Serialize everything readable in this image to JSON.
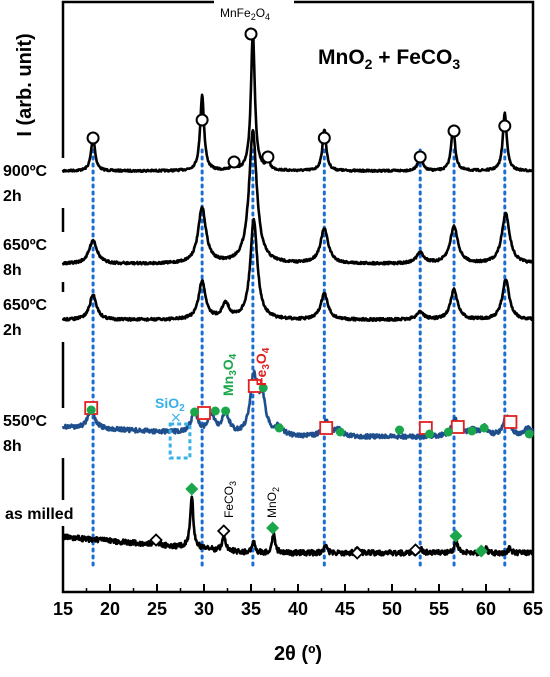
{
  "chart_data": {
    "type": "line",
    "title": "MnO2 + FeCO3",
    "title_parts": {
      "a": "MnO",
      "a_sub": "2",
      "b": " + FeCO",
      "b_sub": "3"
    },
    "xlabel": "2θ (º)",
    "ylabel": "I (arb. unit)",
    "xlim": [
      15,
      65
    ],
    "xticks": [
      15,
      20,
      25,
      30,
      35,
      40,
      45,
      50,
      55,
      60,
      65
    ],
    "grid": false,
    "colors": {
      "black": "#000000",
      "blue_trace": "#1f4e8c",
      "ref_line": "#1a6fd6",
      "green": "#1aa64a",
      "red": "#e02020",
      "sio2": "#38b0e8"
    },
    "series": [
      {
        "name": "900ºC 2h",
        "label_lines": [
          "900ºC",
          "2h"
        ],
        "color": "#000000",
        "peaks": [
          [
            18.2,
            0.25
          ],
          [
            29.8,
            0.55
          ],
          [
            33.1,
            0.04
          ],
          [
            35.2,
            1.0
          ],
          [
            36.8,
            0.06
          ],
          [
            42.8,
            0.3
          ],
          [
            53.0,
            0.12
          ],
          [
            56.5,
            0.32
          ],
          [
            62.0,
            0.42
          ]
        ]
      },
      {
        "name": "650ºC 8h",
        "label_lines": [
          "650ºC",
          "8h"
        ],
        "color": "#000000",
        "peaks": [
          [
            18.2,
            0.18
          ],
          [
            29.8,
            0.42
          ],
          [
            35.2,
            1.0
          ],
          [
            42.8,
            0.26
          ],
          [
            53.0,
            0.08
          ],
          [
            56.6,
            0.28
          ],
          [
            62.1,
            0.38
          ]
        ]
      },
      {
        "name": "650ºC 2h",
        "label_lines": [
          "650ºC",
          "2h"
        ],
        "color": "#000000",
        "peaks": [
          [
            18.2,
            0.25
          ],
          [
            29.8,
            0.38
          ],
          [
            32.3,
            0.15
          ],
          [
            35.3,
            1.0
          ],
          [
            42.8,
            0.26
          ],
          [
            53.0,
            0.08
          ],
          [
            56.6,
            0.3
          ],
          [
            62.1,
            0.4
          ]
        ]
      },
      {
        "name": "550ºC 8h",
        "label_lines": [
          "550ºC",
          "8h"
        ],
        "color": "#1f4e8c",
        "peaks": [
          [
            18.0,
            0.3
          ],
          [
            29.0,
            0.35
          ],
          [
            30.8,
            0.3
          ],
          [
            32.3,
            0.35
          ],
          [
            35.3,
            1.0
          ],
          [
            36.2,
            0.6
          ],
          [
            38.0,
            0.15
          ],
          [
            43.0,
            0.25
          ],
          [
            44.3,
            0.12
          ],
          [
            56.7,
            0.3
          ],
          [
            58.5,
            0.12
          ],
          [
            59.8,
            0.15
          ],
          [
            62.2,
            0.35
          ],
          [
            64.5,
            0.15
          ]
        ]
      },
      {
        "name": "as milled",
        "label_lines": [
          "as milled"
        ],
        "color": "#000000",
        "peaks": [
          [
            24.9,
            0.12
          ],
          [
            28.7,
            1.0
          ],
          [
            32.1,
            0.3
          ],
          [
            35.3,
            0.2
          ],
          [
            37.4,
            0.35
          ],
          [
            42.9,
            0.15
          ],
          [
            46.3,
            0.06
          ],
          [
            53.1,
            0.08
          ],
          [
            56.8,
            0.25
          ],
          [
            60.0,
            0.08
          ],
          [
            62.5,
            0.08
          ]
        ]
      }
    ],
    "reference_lines": {
      "compound": "MnFe2O4",
      "x": [
        18.2,
        29.8,
        35.2,
        42.8,
        53.0,
        56.6,
        62.0
      ]
    },
    "markers": {
      "MnFe2O4_circles": [
        18.2,
        29.8,
        33.2,
        35.0,
        36.8,
        42.8,
        53.0,
        56.6,
        62.0
      ],
      "Fe3O4_squares": [
        18.0,
        30.0,
        35.4,
        43.0,
        53.6,
        57.0,
        62.6
      ],
      "Mn3O4_dots": [
        18.0,
        29.0,
        31.2,
        32.3,
        36.3,
        38.0,
        44.5,
        50.8,
        54.0,
        56.0,
        58.5,
        59.8,
        64.6
      ],
      "FeCO3_diamonds": [
        24.9,
        32.1,
        46.3,
        52.5
      ],
      "MnO2_diamonds": [
        28.7,
        37.3,
        56.8,
        59.5
      ],
      "SiO2_box": [
        26.4,
        28.5
      ]
    },
    "annotations": {
      "top": {
        "base": "MnFe",
        "sub1": "2",
        "mid": "O",
        "sub2": "4"
      },
      "sio2": {
        "base": "SiO",
        "sub": "2"
      },
      "mn3o4": {
        "base": "Mn",
        "sub1": "3",
        "mid": "O",
        "sub2": "4"
      },
      "fe3o4": {
        "base": "Fe",
        "sub1": "3",
        "mid": "O",
        "sub2": "4"
      },
      "feco3": {
        "base": "FeCO",
        "sub": "3"
      },
      "mno2": {
        "base": "MnO",
        "sub": "2"
      }
    }
  }
}
